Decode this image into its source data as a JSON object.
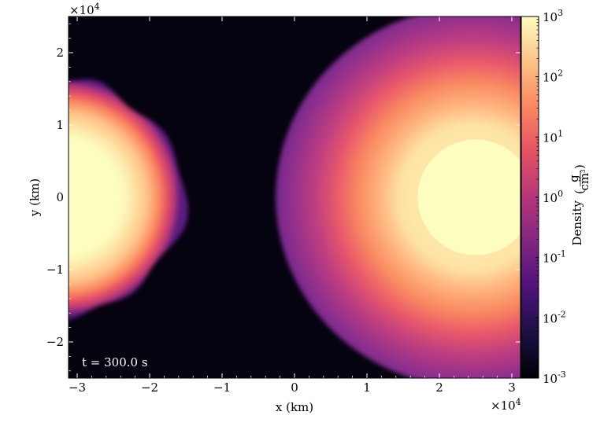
{
  "chart_data": {
    "type": "heatmap",
    "title": "",
    "xlabel": "x  (km)",
    "ylabel": "y  (km)",
    "x_multiplier": "×10",
    "x_multiplier_exp": "4",
    "y_multiplier": "×10",
    "y_multiplier_exp": "4",
    "xlim": [
      -3.12,
      3.12
    ],
    "ylim": [
      -2.5,
      2.5
    ],
    "x_ticks": [
      -3,
      -2,
      -1,
      0,
      1,
      2,
      3
    ],
    "x_tick_labels": [
      "−3",
      "−2",
      "−1",
      "0",
      "1",
      "2",
      "3"
    ],
    "y_ticks": [
      2,
      1,
      0,
      -1,
      -2
    ],
    "y_tick_labels": [
      "2",
      "1",
      "0",
      "−1",
      "−2"
    ],
    "annotation": "t = 300.0 s",
    "colormap": "magma",
    "colormap_stops": [
      "#000004",
      "#1c1044",
      "#4f127b",
      "#812581",
      "#b5367a",
      "#e55064",
      "#fb8761",
      "#fec287",
      "#fcfdbf"
    ],
    "colorbar": {
      "label": "Density",
      "unit_numerator": "g",
      "unit_denominator": "cm",
      "unit_denominator_exp": "3",
      "scale": "log",
      "range": [
        -3,
        3
      ],
      "ticks": [
        {
          "value": 3,
          "base": "10",
          "exp": "3"
        },
        {
          "value": 2,
          "base": "10",
          "exp": "2"
        },
        {
          "value": 1,
          "base": "10",
          "exp": "1"
        },
        {
          "value": 0,
          "base": "10",
          "exp": "0"
        },
        {
          "value": -1,
          "base": "10",
          "exp": "-1"
        },
        {
          "value": -2,
          "base": "10",
          "exp": "-2"
        },
        {
          "value": -3,
          "base": "10",
          "exp": "-3"
        }
      ]
    },
    "objects": [
      {
        "name": "left-ejecta-cloud",
        "center_x": -3.2,
        "center_y": 0.0,
        "radius": 1.45,
        "peak_log_density": 3
      },
      {
        "name": "right-ejecta-halo",
        "center_x": 2.5,
        "center_y": 0.0,
        "radius": 3.0,
        "peak_log_density": 0.5
      },
      {
        "name": "right-dense-core",
        "center_x": 2.5,
        "center_y": 0.0,
        "radius": 0.8,
        "peak_log_density": 3
      }
    ]
  }
}
